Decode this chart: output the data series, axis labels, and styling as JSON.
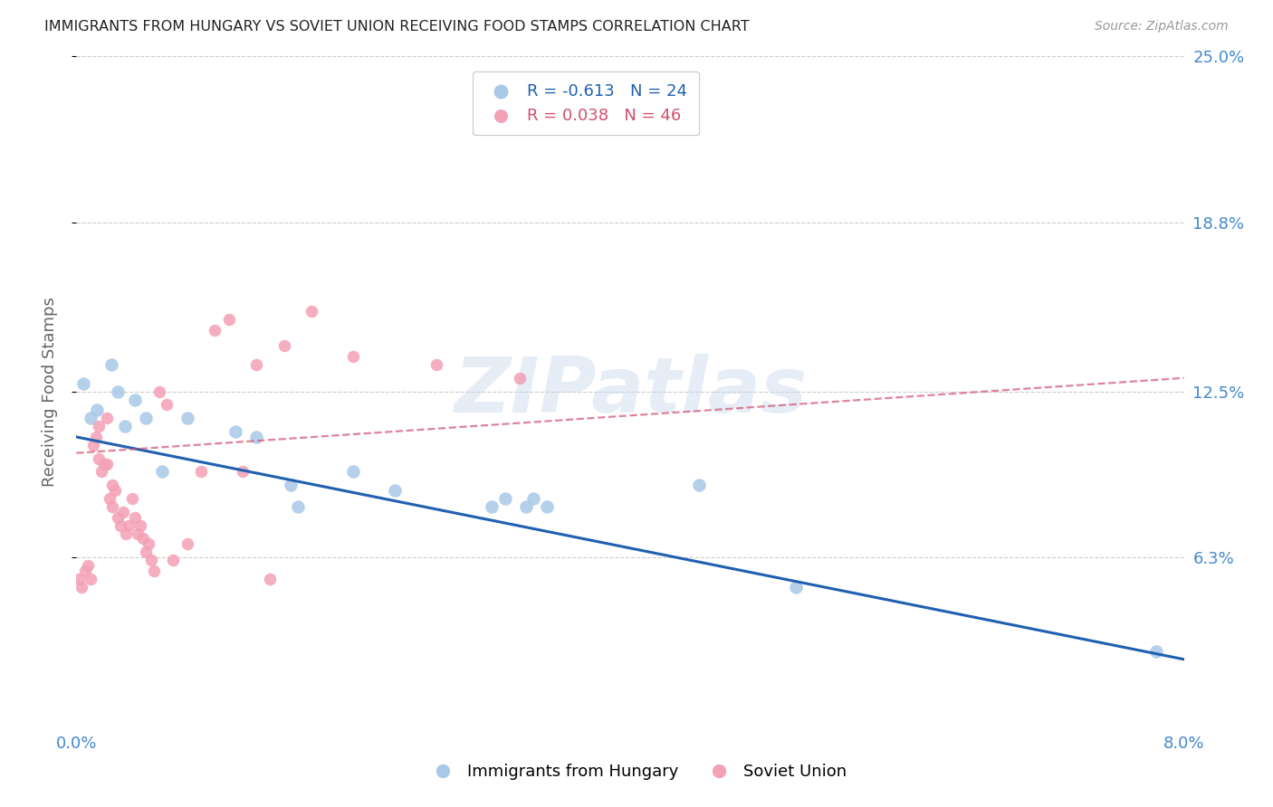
{
  "title": "IMMIGRANTS FROM HUNGARY VS SOVIET UNION RECEIVING FOOD STAMPS CORRELATION CHART",
  "source": "Source: ZipAtlas.com",
  "ylabel": "Receiving Food Stamps",
  "xlim": [
    0.0,
    8.0
  ],
  "ylim": [
    0.0,
    25.0
  ],
  "yticks": [
    6.3,
    12.5,
    18.8,
    25.0
  ],
  "ytick_labels": [
    "6.3%",
    "12.5%",
    "18.8%",
    "25.0%"
  ],
  "xticks": [
    0.0,
    1.6,
    3.2,
    4.8,
    6.4,
    8.0
  ],
  "xtick_labels": [
    "0.0%",
    "",
    "",
    "",
    "",
    "8.0%"
  ],
  "hungary_color": "#a8c8e8",
  "soviet_color": "#f4a0b5",
  "hungary_line_color": "#2060b0",
  "soviet_line_color": "#d05070",
  "hungary_R": -0.613,
  "hungary_N": 24,
  "soviet_R": 0.038,
  "soviet_N": 46,
  "hungary_scatter_x": [
    0.05,
    0.1,
    0.15,
    0.25,
    0.3,
    0.35,
    0.42,
    0.5,
    0.62,
    0.8,
    1.15,
    1.3,
    1.55,
    1.6,
    2.0,
    2.3,
    3.0,
    3.1,
    3.25,
    3.3,
    3.4,
    4.5,
    5.2,
    7.8
  ],
  "hungary_scatter_y": [
    12.8,
    11.5,
    11.8,
    13.5,
    12.5,
    11.2,
    12.2,
    11.5,
    9.5,
    11.5,
    11.0,
    10.8,
    9.0,
    8.2,
    9.5,
    8.8,
    8.2,
    8.5,
    8.2,
    8.5,
    8.2,
    9.0,
    5.2,
    2.8
  ],
  "soviet_scatter_x": [
    0.02,
    0.04,
    0.06,
    0.08,
    0.1,
    0.12,
    0.14,
    0.16,
    0.16,
    0.18,
    0.2,
    0.22,
    0.22,
    0.24,
    0.26,
    0.26,
    0.28,
    0.3,
    0.32,
    0.34,
    0.36,
    0.38,
    0.4,
    0.42,
    0.44,
    0.46,
    0.48,
    0.5,
    0.52,
    0.54,
    0.56,
    0.6,
    0.65,
    0.7,
    0.8,
    0.9,
    1.0,
    1.1,
    1.2,
    1.3,
    1.4,
    1.5,
    1.7,
    2.0,
    2.6,
    3.2
  ],
  "soviet_scatter_y": [
    5.5,
    5.2,
    5.8,
    6.0,
    5.5,
    10.5,
    10.8,
    11.2,
    10.0,
    9.5,
    9.8,
    11.5,
    9.8,
    8.5,
    8.2,
    9.0,
    8.8,
    7.8,
    7.5,
    8.0,
    7.2,
    7.5,
    8.5,
    7.8,
    7.2,
    7.5,
    7.0,
    6.5,
    6.8,
    6.2,
    5.8,
    12.5,
    12.0,
    6.2,
    6.8,
    9.5,
    14.8,
    15.2,
    9.5,
    13.5,
    5.5,
    14.2,
    15.5,
    13.8,
    13.5,
    13.0
  ],
  "hungary_line_x0": 0.0,
  "hungary_line_x1": 8.0,
  "hungary_line_y0": 10.8,
  "hungary_line_y1": 2.5,
  "soviet_line_x0": 0.0,
  "soviet_line_x1": 8.0,
  "soviet_line_y0": 10.2,
  "soviet_line_y1": 13.0,
  "background_color": "#ffffff",
  "title_color": "#222222",
  "right_axis_color": "#4488cc",
  "grid_color": "#cccccc",
  "watermark_text": "ZIPatlas",
  "watermark_color": "#c8d8ec",
  "legend_hungary_label": "Immigrants from Hungary",
  "legend_soviet_label": "Soviet Union"
}
